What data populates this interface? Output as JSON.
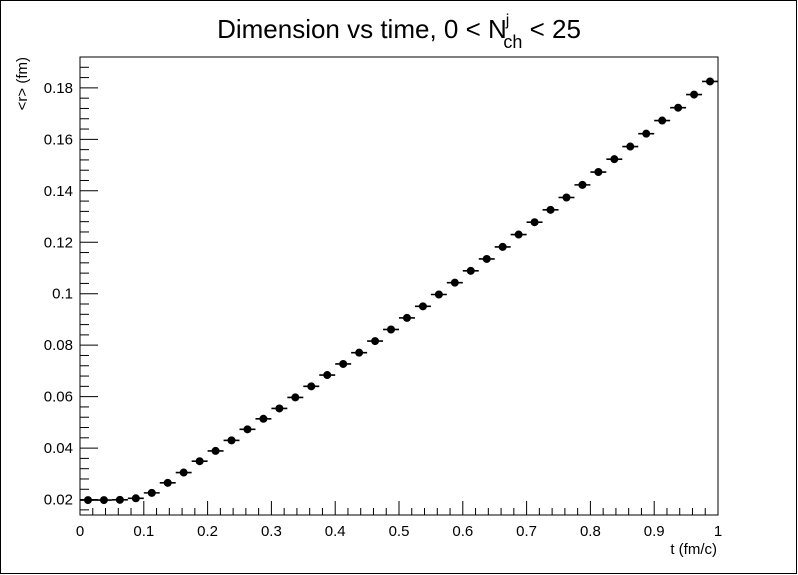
{
  "chart_data": {
    "type": "scatter",
    "title": {
      "prefix": "Dimension vs time, 0 < N",
      "sup": "j",
      "sub": "ch",
      "suffix": " < 25"
    },
    "xlabel": "t (fm/c)",
    "ylabel": "<r> (fm)",
    "xlim": [
      0,
      1
    ],
    "ylim": [
      0.014,
      0.192
    ],
    "x_ticks": [
      {
        "value": 0,
        "label": "0"
      },
      {
        "value": 0.1,
        "label": "0.1"
      },
      {
        "value": 0.2,
        "label": "0.2"
      },
      {
        "value": 0.3,
        "label": "0.3"
      },
      {
        "value": 0.4,
        "label": "0.4"
      },
      {
        "value": 0.5,
        "label": "0.5"
      },
      {
        "value": 0.6,
        "label": "0.6"
      },
      {
        "value": 0.7,
        "label": "0.7"
      },
      {
        "value": 0.8,
        "label": "0.8"
      },
      {
        "value": 0.9,
        "label": "0.9"
      },
      {
        "value": 1,
        "label": "1"
      }
    ],
    "y_ticks": [
      {
        "value": 0.02,
        "label": "0.02"
      },
      {
        "value": 0.04,
        "label": "0.04"
      },
      {
        "value": 0.06,
        "label": "0.06"
      },
      {
        "value": 0.08,
        "label": "0.08"
      },
      {
        "value": 0.1,
        "label": "0.1"
      },
      {
        "value": 0.12,
        "label": "0.12"
      },
      {
        "value": 0.14,
        "label": "0.14"
      },
      {
        "value": 0.16,
        "label": "0.16"
      },
      {
        "value": 0.18,
        "label": "0.18"
      }
    ],
    "grid": false,
    "marker_color": "#000000",
    "x_error": 0.0125,
    "x": [
      0.0125,
      0.0375,
      0.0625,
      0.0875,
      0.1125,
      0.1375,
      0.1625,
      0.1875,
      0.2125,
      0.2375,
      0.2625,
      0.2875,
      0.3125,
      0.3375,
      0.3625,
      0.3875,
      0.4125,
      0.4375,
      0.4625,
      0.4875,
      0.5125,
      0.5375,
      0.5625,
      0.5875,
      0.6125,
      0.6375,
      0.6625,
      0.6875,
      0.7125,
      0.7375,
      0.7625,
      0.7875,
      0.8125,
      0.8375,
      0.8625,
      0.8875,
      0.9125,
      0.9375,
      0.9625,
      0.9875
    ],
    "y": [
      0.0198,
      0.0198,
      0.0199,
      0.0205,
      0.0226,
      0.0265,
      0.0305,
      0.0349,
      0.0389,
      0.043,
      0.0473,
      0.0514,
      0.0554,
      0.0597,
      0.064,
      0.0684,
      0.0727,
      0.0771,
      0.0816,
      0.0861,
      0.0906,
      0.0951,
      0.0997,
      0.1043,
      0.1089,
      0.1135,
      0.1182,
      0.123,
      0.1278,
      0.1326,
      0.1374,
      0.1423,
      0.1473,
      0.1523,
      0.1572,
      0.1622,
      0.1673,
      0.1723,
      0.1774,
      0.1825
    ]
  }
}
